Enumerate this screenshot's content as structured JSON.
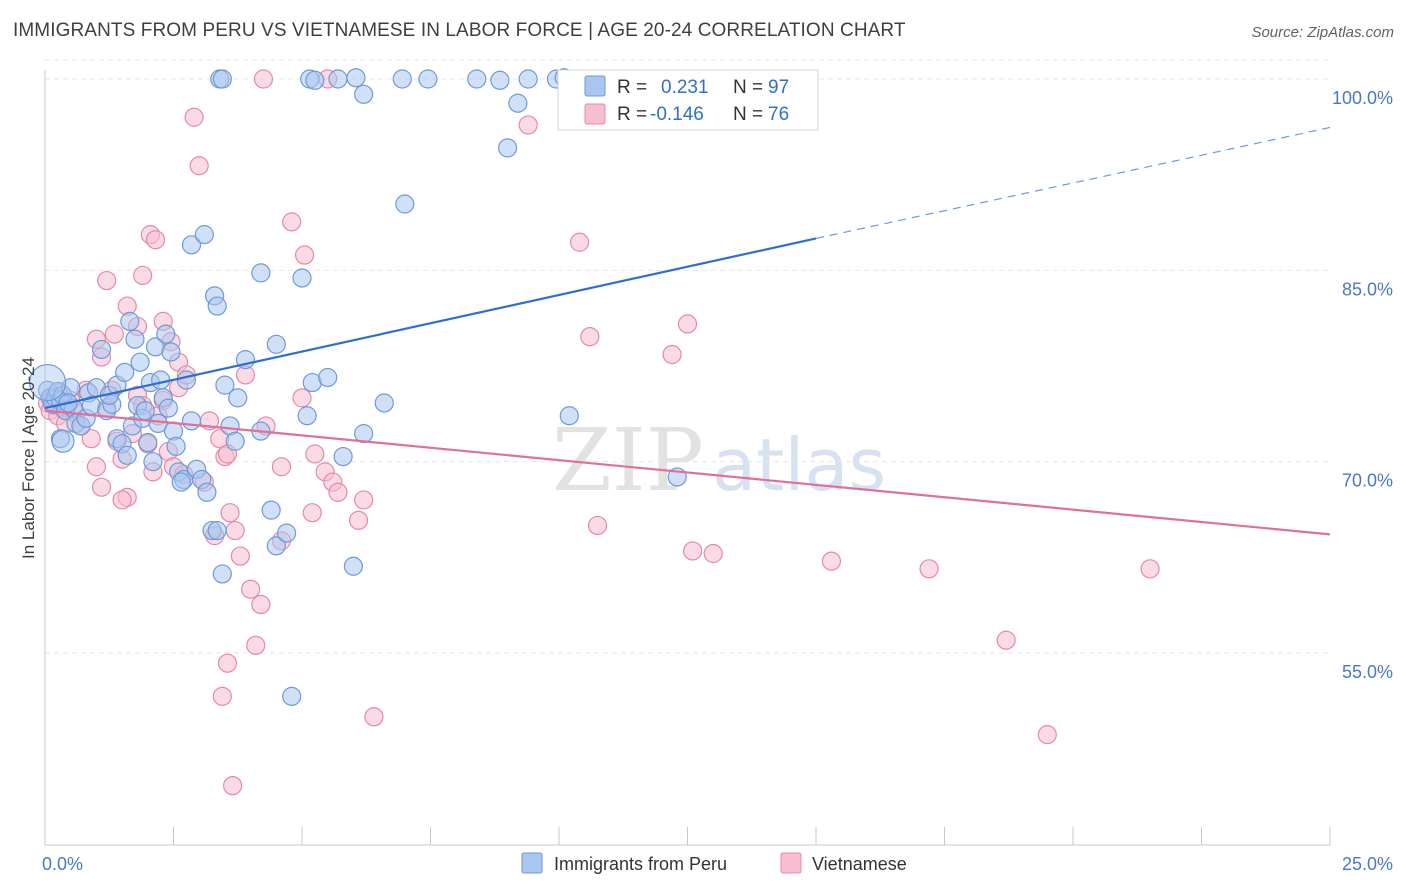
{
  "title": "IMMIGRANTS FROM PERU VS VIETNAMESE IN LABOR FORCE | AGE 20-24 CORRELATION CHART",
  "source": "Source: ZipAtlas.com",
  "watermark": {
    "left": "ZIP",
    "right": "atlas"
  },
  "colors": {
    "blue_fill": "#a9c6f0",
    "blue_stroke": "#6f9ad8",
    "blue_line": "#2d6fd0",
    "pink_fill": "#f6bed0",
    "pink_stroke": "#e48aa8",
    "pink_line": "#e0709a",
    "grid": "#e6e6e6",
    "tick_label": "#4a78c8"
  },
  "chart_data": {
    "type": "scatter",
    "title": "IMMIGRANTS FROM PERU VS VIETNAMESE IN LABOR FORCE | AGE 20-24 CORRELATION CHART",
    "xlabel": "",
    "ylabel": "In Labor Force | Age 20-24",
    "xlim": [
      0,
      25
    ],
    "ylim": [
      39,
      103
    ],
    "x_tick_labels": [
      {
        "value": 0,
        "label": "0.0%"
      },
      {
        "value": 25,
        "label": "25.0%"
      }
    ],
    "y_tick_labels": [
      {
        "value": 100,
        "label": "100.0%"
      },
      {
        "value": 85,
        "label": "85.0%"
      },
      {
        "value": 70,
        "label": "70.0%"
      },
      {
        "value": 55,
        "label": "55.0%"
      }
    ],
    "y_gridlines": [
      101.5,
      100,
      85,
      70,
      55
    ],
    "legend": [
      {
        "series": "Immigrants from Peru",
        "r_label": "R =",
        "r_value": "0.231",
        "n_label": "N =",
        "n_value": "97"
      },
      {
        "series": "Vietnamese",
        "r_label": "R =",
        "r_value": "-0.146",
        "n_label": "N =",
        "n_value": "76"
      }
    ],
    "series": [
      {
        "name": "Immigrants from Peru",
        "color": "blue",
        "trend": {
          "x0": 0,
          "y0": 74.2,
          "x1": 15,
          "y1": 87.5,
          "dashed_to_x": 25,
          "dashed_to_y": 96.2
        },
        "points": [
          [
            0.05,
            75.6
          ],
          [
            0.1,
            75
          ],
          [
            0.15,
            74.5
          ],
          [
            0.2,
            75
          ],
          [
            0.25,
            75.5
          ],
          [
            0.3,
            74.8
          ],
          [
            0.35,
            75.2
          ],
          [
            0.4,
            74
          ],
          [
            0.5,
            75.8
          ],
          [
            0.55,
            74.2
          ],
          [
            0.6,
            73
          ],
          [
            0.7,
            72.8
          ],
          [
            0.8,
            73.4
          ],
          [
            0.85,
            75.4
          ],
          [
            0.9,
            74.4
          ],
          [
            0.3,
            71.8
          ],
          [
            0.45,
            74.6
          ],
          [
            1.2,
            74
          ],
          [
            1.3,
            74.5
          ],
          [
            1.4,
            71.8
          ],
          [
            1.5,
            71.4
          ],
          [
            1.6,
            70.5
          ],
          [
            1.7,
            72.8
          ],
          [
            1.8,
            74.4
          ],
          [
            1.9,
            73.4
          ],
          [
            2.0,
            71.5
          ],
          [
            2.1,
            70
          ],
          [
            2.2,
            73
          ],
          [
            2.3,
            75
          ],
          [
            2.4,
            74.2
          ],
          [
            2.5,
            72.4
          ],
          [
            2.6,
            69.2
          ],
          [
            2.7,
            68.6
          ],
          [
            1.0,
            75.8
          ],
          [
            1.1,
            78.8
          ],
          [
            1.25,
            75.2
          ],
          [
            1.4,
            76
          ],
          [
            1.55,
            77
          ],
          [
            1.65,
            81
          ],
          [
            1.75,
            79.6
          ],
          [
            1.85,
            77.8
          ],
          [
            1.95,
            74
          ],
          [
            2.05,
            76.2
          ],
          [
            2.15,
            79
          ],
          [
            2.25,
            76.4
          ],
          [
            2.35,
            80
          ],
          [
            2.45,
            78.6
          ],
          [
            2.55,
            71.2
          ],
          [
            2.65,
            68.4
          ],
          [
            2.75,
            76.4
          ],
          [
            2.85,
            73.2
          ],
          [
            2.95,
            69.4
          ],
          [
            3.05,
            68.6
          ],
          [
            3.15,
            67.6
          ],
          [
            3.25,
            64.6
          ],
          [
            3.35,
            64.6
          ],
          [
            3.45,
            61.2
          ],
          [
            3.5,
            76
          ],
          [
            3.6,
            72.8
          ],
          [
            3.7,
            71.6
          ],
          [
            3.75,
            75
          ],
          [
            3.9,
            78
          ],
          [
            4.2,
            72.4
          ],
          [
            4.4,
            66.2
          ],
          [
            4.5,
            63.4
          ],
          [
            4.7,
            64.4
          ],
          [
            4.8,
            51.6
          ],
          [
            5.1,
            73.6
          ],
          [
            5.8,
            70.4
          ],
          [
            6.0,
            61.8
          ],
          [
            12.3,
            68.8
          ],
          [
            10.2,
            73.6
          ],
          [
            3.3,
            83
          ],
          [
            3.35,
            82.2
          ],
          [
            2.85,
            87
          ],
          [
            3.1,
            87.8
          ],
          [
            5.0,
            84.4
          ],
          [
            7.0,
            90.2
          ],
          [
            9.0,
            94.6
          ],
          [
            9.2,
            98.1
          ],
          [
            3.4,
            100
          ],
          [
            3.45,
            100
          ],
          [
            5.15,
            100
          ],
          [
            5.25,
            99.9
          ],
          [
            5.7,
            100
          ],
          [
            6.05,
            100.1
          ],
          [
            6.95,
            100
          ],
          [
            7.45,
            100
          ],
          [
            8.4,
            100
          ],
          [
            8.85,
            99.9
          ],
          [
            9.4,
            100
          ],
          [
            9.95,
            100
          ],
          [
            10.1,
            100.1
          ],
          [
            6.2,
            98.8
          ],
          [
            4.2,
            84.8
          ],
          [
            4.5,
            79.2
          ],
          [
            5.2,
            76.2
          ],
          [
            5.5,
            76.6
          ],
          [
            6.2,
            72.2
          ],
          [
            6.6,
            74.6
          ]
        ]
      },
      {
        "name": "Vietnamese",
        "color": "pink",
        "trend": {
          "x0": 0,
          "y0": 74.0,
          "x1": 25,
          "y1": 64.3
        },
        "points": [
          [
            0.05,
            74.6
          ],
          [
            0.1,
            74
          ],
          [
            0.15,
            75
          ],
          [
            0.2,
            74.4
          ],
          [
            0.25,
            73.6
          ],
          [
            0.3,
            75.4
          ],
          [
            0.35,
            74.2
          ],
          [
            0.4,
            73
          ],
          [
            0.5,
            74.8
          ],
          [
            0.6,
            73.8
          ],
          [
            0.7,
            72.8
          ],
          [
            0.8,
            75.6
          ],
          [
            0.9,
            71.8
          ],
          [
            1.0,
            69.6
          ],
          [
            1.1,
            68
          ],
          [
            1.2,
            74.2
          ],
          [
            1.3,
            75.6
          ],
          [
            1.4,
            71.6
          ],
          [
            1.5,
            70.2
          ],
          [
            1.6,
            67.2
          ],
          [
            1.7,
            72.2
          ],
          [
            1.8,
            75.2
          ],
          [
            1.9,
            74.4
          ],
          [
            2.0,
            71.4
          ],
          [
            2.1,
            69.2
          ],
          [
            2.2,
            73.6
          ],
          [
            2.3,
            74.8
          ],
          [
            2.4,
            70.8
          ],
          [
            2.5,
            69.6
          ],
          [
            2.6,
            75.8
          ],
          [
            1.0,
            79.6
          ],
          [
            1.1,
            78.2
          ],
          [
            1.2,
            84.2
          ],
          [
            1.35,
            80
          ],
          [
            1.6,
            82.2
          ],
          [
            1.8,
            80.6
          ],
          [
            1.9,
            84.6
          ],
          [
            2.05,
            87.8
          ],
          [
            2.15,
            87.4
          ],
          [
            2.3,
            81
          ],
          [
            2.45,
            79.4
          ],
          [
            2.6,
            77.8
          ],
          [
            2.75,
            76.8
          ],
          [
            2.9,
            97
          ],
          [
            3.2,
            73.2
          ],
          [
            3.4,
            71.8
          ],
          [
            3.5,
            70.4
          ],
          [
            3.6,
            66
          ],
          [
            3.7,
            64.6
          ],
          [
            3.8,
            62.6
          ],
          [
            4.0,
            60
          ],
          [
            4.1,
            55.6
          ],
          [
            1.5,
            67
          ],
          [
            2.7,
            69
          ],
          [
            3.1,
            68.4
          ],
          [
            3.3,
            64.2
          ],
          [
            3.55,
            70.6
          ],
          [
            3.9,
            76.8
          ],
          [
            4.3,
            72.8
          ],
          [
            4.6,
            69.6
          ],
          [
            4.8,
            88.8
          ],
          [
            5.05,
            86.2
          ],
          [
            5.25,
            70.6
          ],
          [
            5.45,
            69.2
          ],
          [
            5.6,
            68.4
          ],
          [
            5.7,
            67.6
          ],
          [
            6.2,
            67
          ],
          [
            3.45,
            51.6
          ],
          [
            3.55,
            54.2
          ],
          [
            3.65,
            44.6
          ],
          [
            4.2,
            58.8
          ],
          [
            4.6,
            63.8
          ],
          [
            6.4,
            50
          ],
          [
            5.0,
            75
          ],
          [
            5.2,
            66
          ],
          [
            6.1,
            65.4
          ],
          [
            3.0,
            93.2
          ],
          [
            4.25,
            100
          ],
          [
            5.5,
            100
          ],
          [
            9.4,
            96.4
          ],
          [
            10.4,
            87.2
          ],
          [
            10.6,
            79.8
          ],
          [
            10.75,
            65
          ],
          [
            12.2,
            78.4
          ],
          [
            12.5,
            80.8
          ],
          [
            12.6,
            63
          ],
          [
            13.0,
            62.8
          ],
          [
            15.3,
            62.2
          ],
          [
            17.2,
            61.6
          ],
          [
            18.7,
            56
          ],
          [
            19.5,
            48.6
          ],
          [
            21.5,
            61.6
          ]
        ]
      }
    ]
  },
  "bottom_legend": [
    {
      "label": "Immigrants from Peru",
      "color": "blue"
    },
    {
      "label": "Vietnamese",
      "color": "pink"
    }
  ]
}
